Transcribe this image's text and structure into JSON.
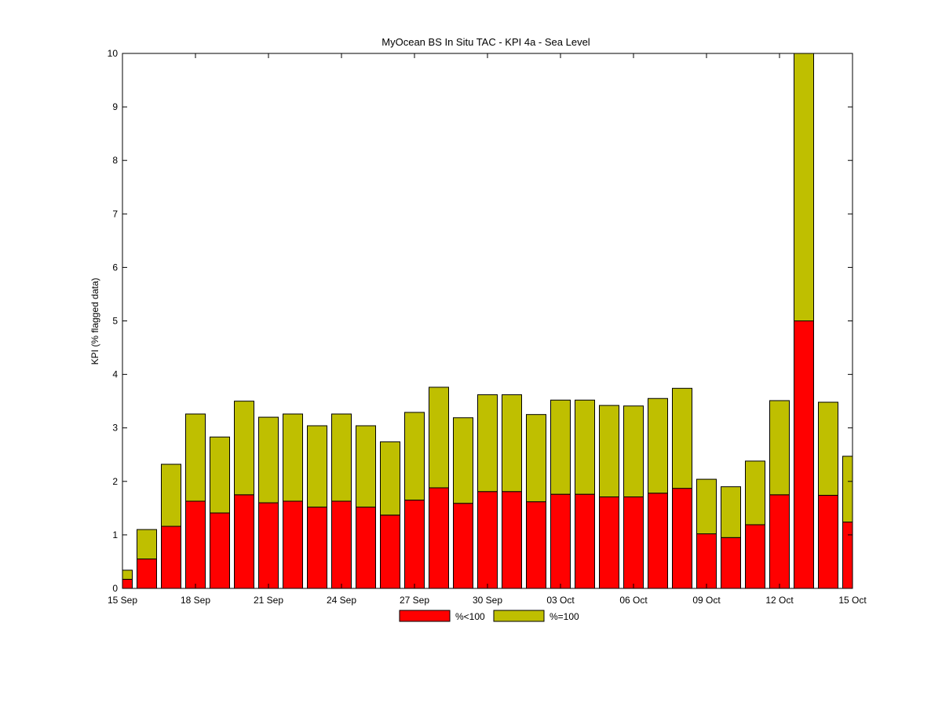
{
  "chart_data": {
    "type": "bar",
    "stacked": true,
    "title": "MyOcean  BS In Situ TAC - KPI 4a - Sea Level",
    "xlabel": "",
    "ylabel": "KPI (% flagged data)",
    "ylim": [
      0,
      10
    ],
    "yticks": [
      "0",
      "1",
      "2",
      "3",
      "4",
      "5",
      "6",
      "7",
      "8",
      "9",
      "10"
    ],
    "xlim": [
      "15 Sep",
      "15 Oct"
    ],
    "xticks": [
      "15 Sep",
      "18 Sep",
      "21 Sep",
      "24 Sep",
      "27 Sep",
      "30 Sep",
      "03 Oct",
      "06 Oct",
      "09 Oct",
      "12 Oct",
      "15 Oct"
    ],
    "grid": false,
    "legend": "bottom-center",
    "categories": [
      "15 Sep",
      "16 Sep",
      "17 Sep",
      "18 Sep",
      "19 Sep",
      "20 Sep",
      "21 Sep",
      "22 Sep",
      "23 Sep",
      "24 Sep",
      "25 Sep",
      "26 Sep",
      "27 Sep",
      "28 Sep",
      "29 Sep",
      "30 Sep",
      "01 Oct",
      "02 Oct",
      "03 Oct",
      "04 Oct",
      "05 Oct",
      "06 Oct",
      "07 Oct",
      "08 Oct",
      "09 Oct",
      "10 Oct",
      "11 Oct",
      "12 Oct",
      "13 Oct",
      "14 Oct",
      "15 Oct"
    ],
    "series": [
      {
        "name": "%<100",
        "color": "#ff0000",
        "values": [
          0.17,
          0.55,
          1.16,
          1.63,
          1.41,
          1.75,
          1.6,
          1.63,
          1.52,
          1.63,
          1.52,
          1.37,
          1.65,
          1.88,
          1.59,
          1.81,
          1.81,
          1.62,
          1.76,
          1.76,
          1.71,
          1.71,
          1.78,
          1.87,
          1.02,
          0.95,
          1.19,
          1.75,
          5.0,
          1.74,
          1.24
        ]
      },
      {
        "name": "%=100",
        "color": "#bfbf00",
        "values": [
          0.17,
          0.55,
          1.16,
          1.63,
          1.42,
          1.75,
          1.6,
          1.63,
          1.52,
          1.63,
          1.52,
          1.37,
          1.64,
          1.88,
          1.6,
          1.81,
          1.81,
          1.63,
          1.76,
          1.76,
          1.71,
          1.7,
          1.77,
          1.87,
          1.02,
          0.95,
          1.19,
          1.76,
          5.0,
          1.74,
          1.23
        ]
      }
    ]
  }
}
